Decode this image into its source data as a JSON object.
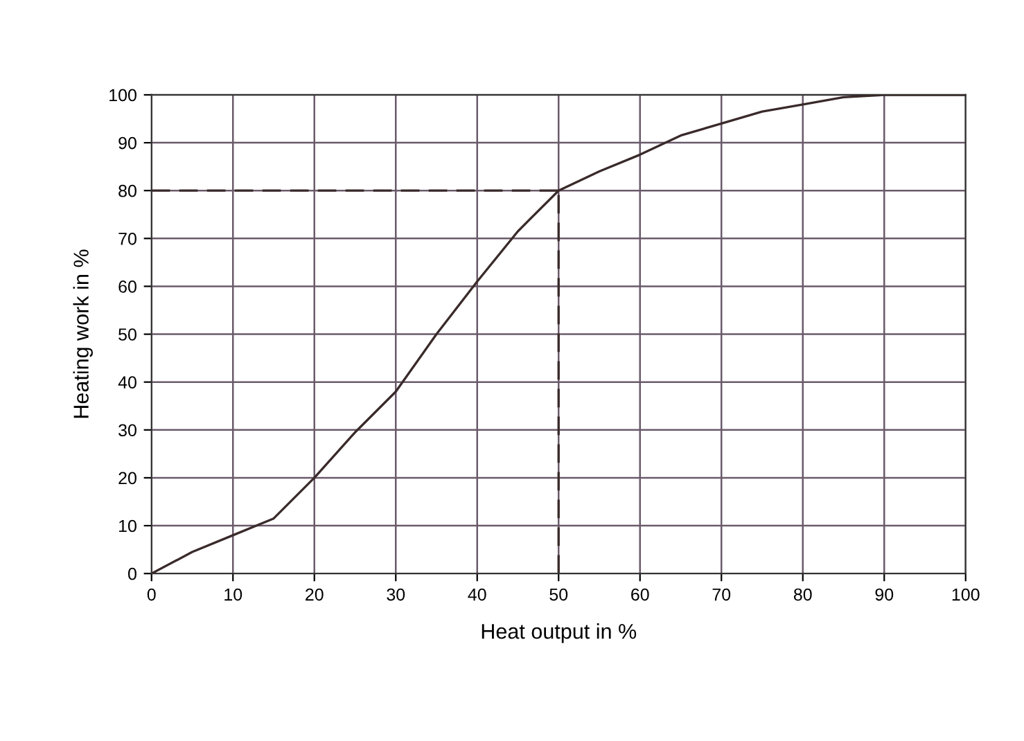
{
  "chart_data": {
    "type": "line",
    "xlabel": "Heat output in %",
    "ylabel": "Heating work in %",
    "x": [
      0,
      5,
      10,
      15,
      20,
      25,
      30,
      35,
      40,
      45,
      50,
      55,
      60,
      65,
      70,
      75,
      80,
      85,
      90,
      100
    ],
    "series": [
      {
        "color": "#3a2a2a",
        "values": [
          0,
          4.5,
          8,
          11.5,
          20,
          29.5,
          38,
          50,
          61,
          71.5,
          80,
          84,
          87.5,
          91.5,
          94,
          96.5,
          98,
          99.5,
          100,
          100
        ]
      }
    ],
    "xlim": [
      0,
      100
    ],
    "ylim": [
      0,
      100
    ],
    "xticks": [
      0,
      10,
      20,
      30,
      40,
      50,
      60,
      70,
      80,
      90,
      100
    ],
    "yticks": [
      0,
      10,
      20,
      30,
      40,
      50,
      60,
      70,
      80,
      90,
      100
    ],
    "ref_lines": [
      {
        "axis": "y",
        "value": 80,
        "color": "#3a2a2a",
        "line_style": "dashed"
      },
      {
        "axis": "x",
        "value": 50,
        "color": "#3a2a2a",
        "line_style": "dashed"
      }
    ],
    "grid": true,
    "marker": "none",
    "line_style": "solid"
  }
}
